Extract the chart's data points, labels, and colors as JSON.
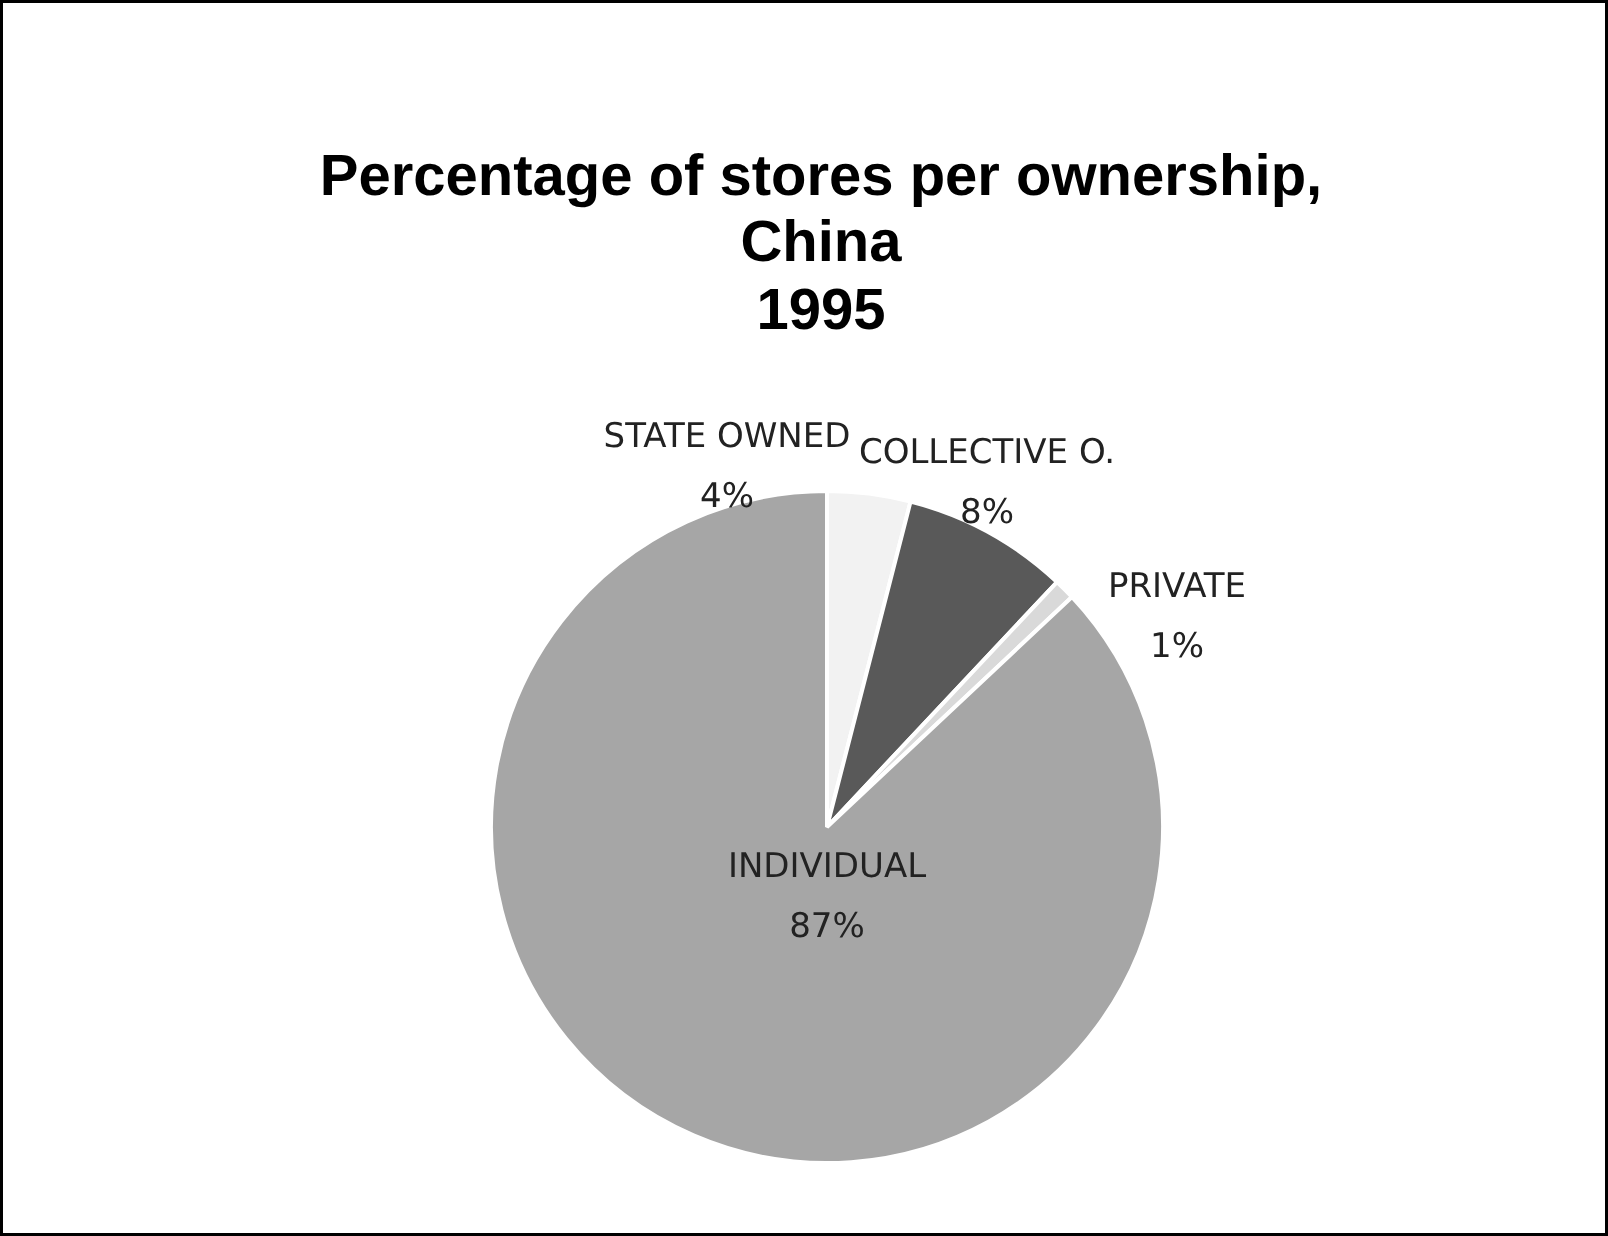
{
  "chart_data": {
    "type": "pie",
    "title": "Percentage of stores per ownership,\nChina\n1995",
    "categories": [
      "STATE OWNED",
      "COLLECTIVE O.",
      "PRIVATE",
      "INDIVIDUAL"
    ],
    "values": [
      4,
      8,
      1,
      87
    ],
    "value_labels": [
      "4%",
      "8%",
      "1%",
      "87%"
    ],
    "colors": [
      "#f2f2f2",
      "#595959",
      "#d9d9d9",
      "#a6a6a6"
    ]
  }
}
